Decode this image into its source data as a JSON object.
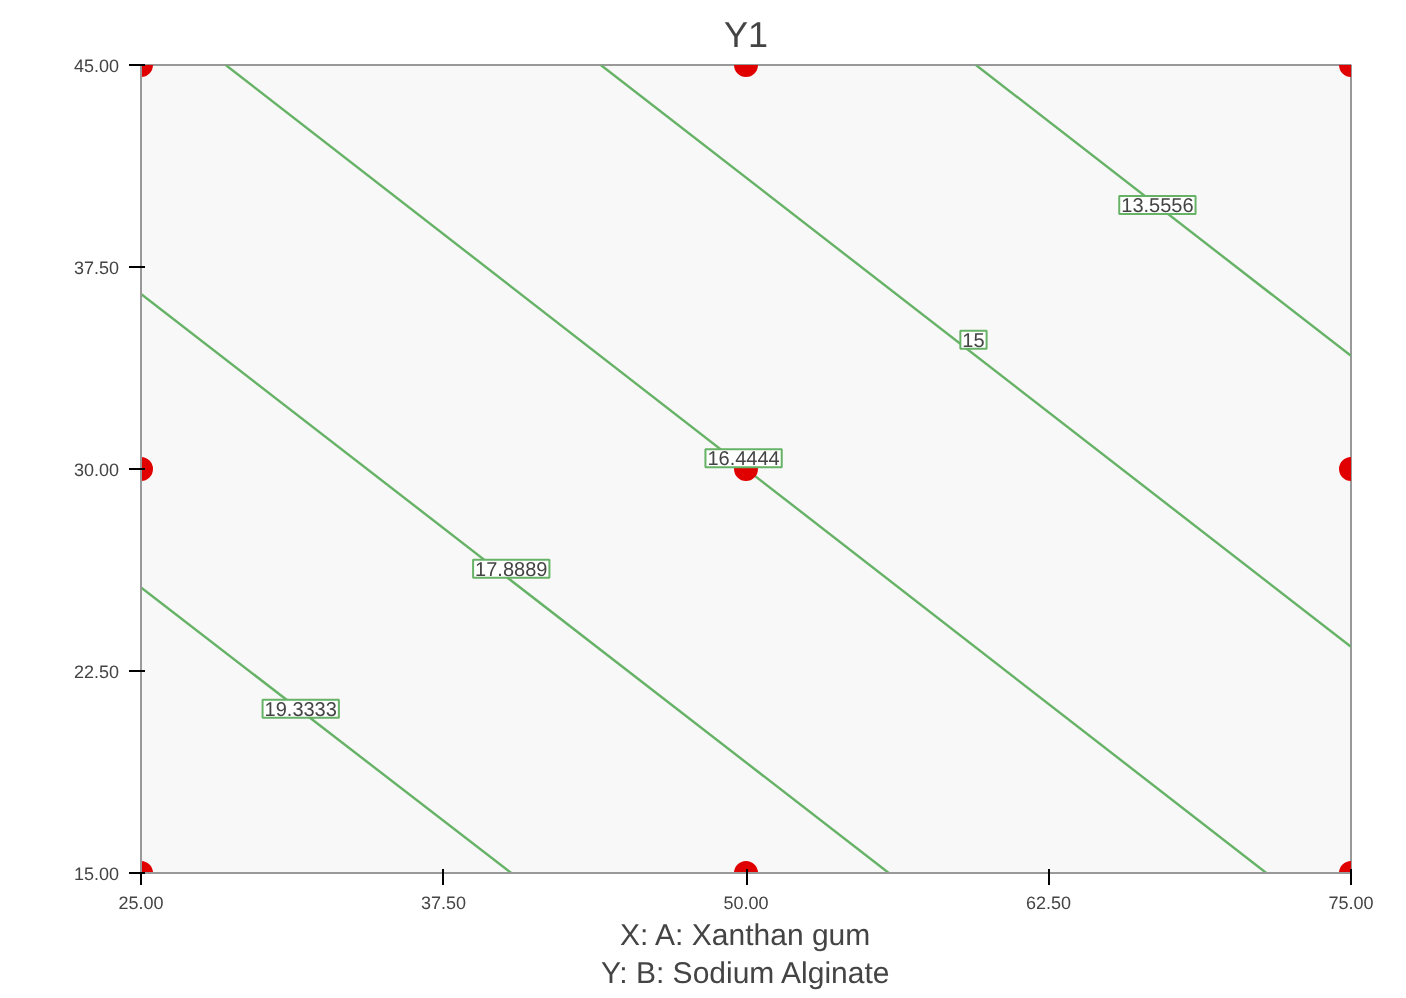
{
  "chart_data": {
    "type": "line",
    "title": "Y1",
    "xlabel": "X: A: Xanthan gum",
    "xlim": [
      25,
      75
    ],
    "ylim": [
      15,
      45
    ],
    "xticks": [
      {
        "value": 25,
        "label": "25.00"
      },
      {
        "value": 37.5,
        "label": "37.50"
      },
      {
        "value": 50,
        "label": "50.00"
      },
      {
        "value": 62.5,
        "label": "62.50"
      },
      {
        "value": 75,
        "label": "75.00"
      }
    ],
    "yticks": [
      {
        "value": 15,
        "label": "15.00"
      },
      {
        "value": 22.5,
        "label": "22.50"
      },
      {
        "value": 30,
        "label": "30.00"
      },
      {
        "value": 37.5,
        "label": "37.50"
      },
      {
        "value": 45,
        "label": "45.00"
      }
    ],
    "grid": false,
    "line_style": "solid",
    "series": [
      {
        "color": "#66b266",
        "x": [
          25,
          40.3
        ],
        "values": [
          25.6,
          15
        ]
      },
      {
        "color": "#66b266",
        "x": [
          25,
          55.9
        ],
        "values": [
          36.5,
          15
        ]
      },
      {
        "color": "#66b266",
        "x": [
          28.5,
          71.5
        ],
        "values": [
          45,
          15
        ]
      },
      {
        "color": "#66b266",
        "x": [
          44.0,
          75
        ],
        "values": [
          45,
          23.4
        ]
      },
      {
        "color": "#66b266",
        "x": [
          59.5,
          75
        ],
        "values": [
          45,
          34.2
        ]
      },
      {
        "type": "scatter",
        "marker": "circle",
        "color": "#e00000",
        "x": [
          25,
          50,
          75,
          25,
          50,
          75,
          25,
          50,
          75
        ],
        "values": [
          45,
          45,
          45,
          30,
          30,
          30,
          15,
          15,
          15
        ]
      }
    ],
    "annotations": [
      {
        "text": "19.3333",
        "x": 31.6,
        "y": 21.1
      },
      {
        "text": "17.8889",
        "x": 40.3,
        "y": 26.3
      },
      {
        "text": "16.4444",
        "x": 49.9,
        "y": 30.4
      },
      {
        "text": "15",
        "x": 59.4,
        "y": 34.8
      },
      {
        "text": "13.5556",
        "x": 67.0,
        "y": 39.8
      },
      "Y: B: Sodium Alginate"
    ]
  }
}
